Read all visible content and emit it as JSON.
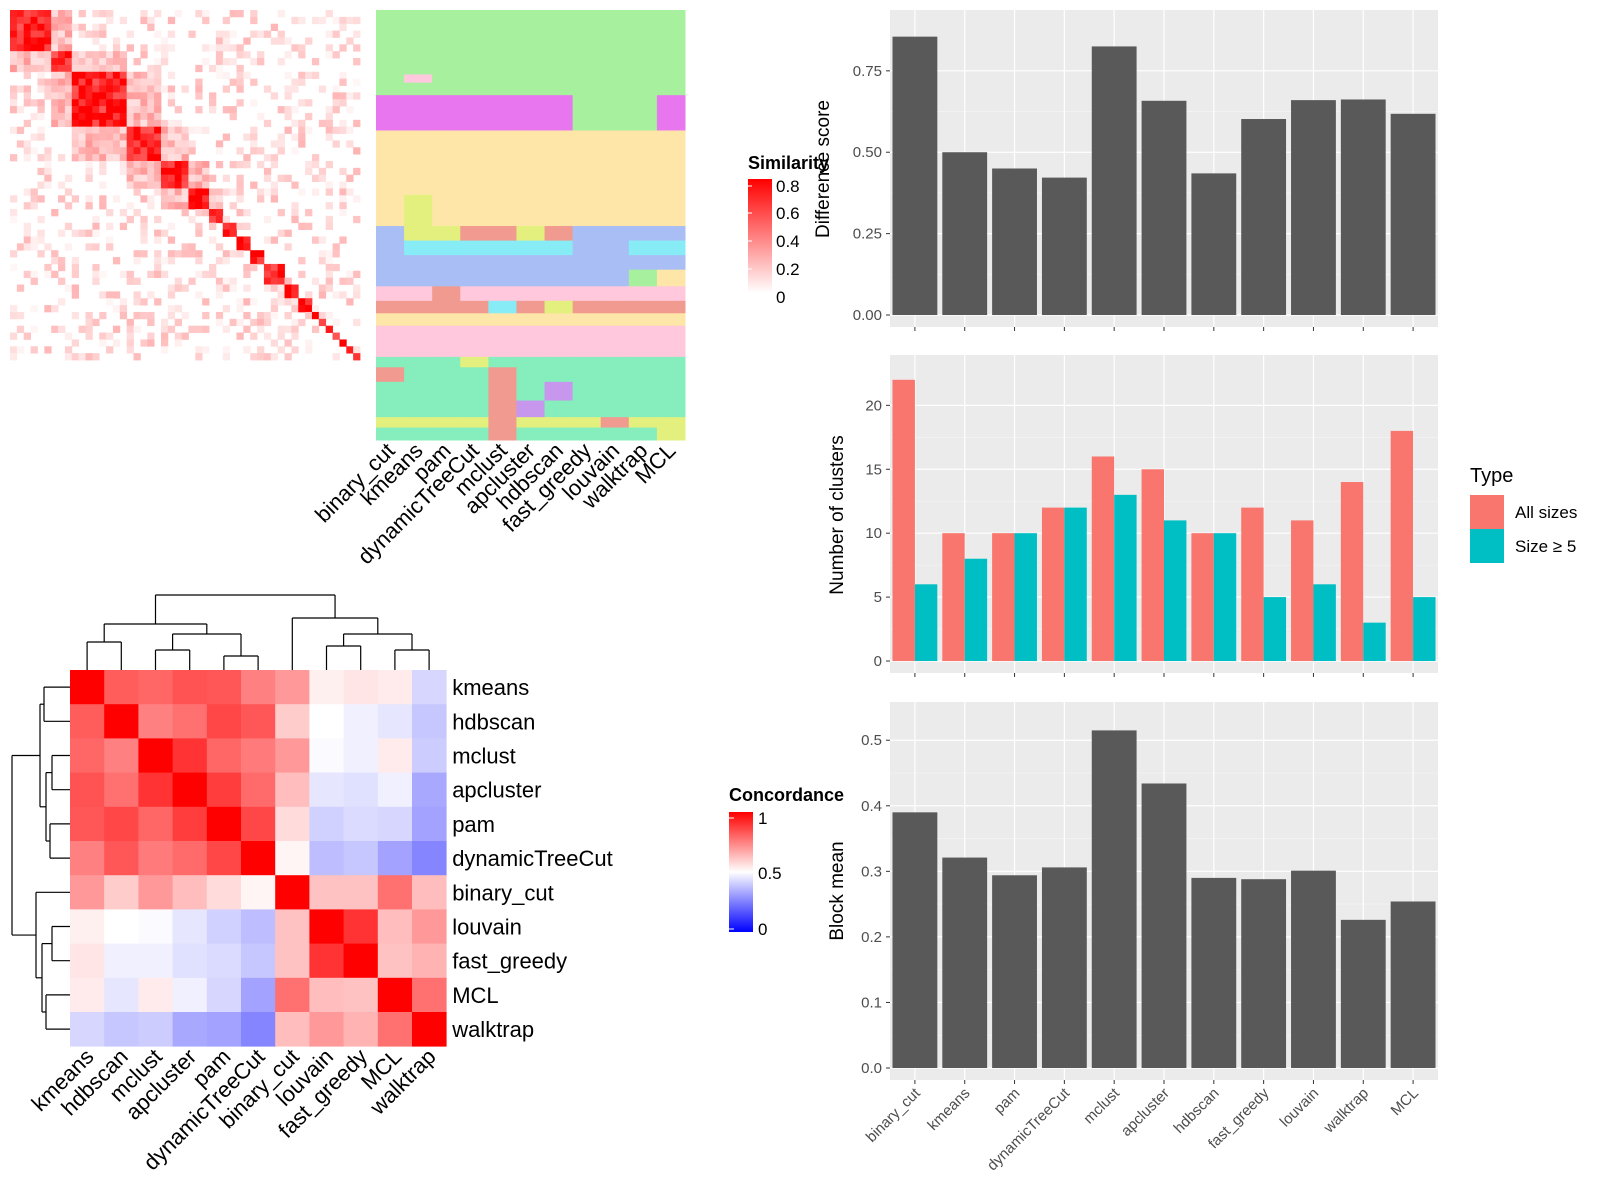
{
  "chart_data": [
    {
      "id": "similarity_heatmap",
      "type": "heatmap",
      "legend": {
        "title": "Similarity",
        "ticks": [
          "0.8",
          "0.6",
          "0.4",
          "0.2",
          "0"
        ],
        "colors": [
          "#ffffff",
          "#ff0000"
        ]
      },
      "column_labels": [
        "binary_cut",
        "kmeans",
        "pam",
        "dynamicTreeCut",
        "mclust",
        "apcluster",
        "hdbscan",
        "fast_greedy",
        "louvain",
        "walktrap",
        "MCL"
      ],
      "block_sizes_rows": [
        6,
        3,
        8,
        5,
        4,
        3,
        2,
        2,
        2,
        2,
        3,
        2,
        2,
        1,
        1,
        1,
        1,
        1,
        1,
        1
      ],
      "membership_colors": [
        "#a6f09e",
        "#e876ee",
        "#fde6a7",
        "#a8bef4",
        "#87ecf6",
        "#ffc8dc",
        "#86eebc",
        "#f19a90",
        "#e3f07e",
        "#c797ee"
      ]
    },
    {
      "id": "concordance_heatmap",
      "type": "heatmap",
      "legend": {
        "title": "Concordance",
        "ticks": [
          "1",
          "0.5",
          "0"
        ],
        "colors": [
          "#0000ff",
          "#ffffff",
          "#ff0000"
        ]
      },
      "labels": [
        "kmeans",
        "hdbscan",
        "mclust",
        "apcluster",
        "pam",
        "dynamicTreeCut",
        "binary_cut",
        "louvain",
        "fast_greedy",
        "MCL",
        "walktrap"
      ],
      "matrix": [
        [
          1.0,
          0.82,
          0.8,
          0.84,
          0.83,
          0.75,
          0.7,
          0.53,
          0.55,
          0.54,
          0.42
        ],
        [
          0.82,
          1.0,
          0.75,
          0.78,
          0.86,
          0.83,
          0.6,
          0.5,
          0.47,
          0.45,
          0.39
        ],
        [
          0.8,
          0.75,
          1.0,
          0.9,
          0.8,
          0.76,
          0.7,
          0.49,
          0.47,
          0.54,
          0.4
        ],
        [
          0.84,
          0.78,
          0.9,
          1.0,
          0.88,
          0.79,
          0.63,
          0.45,
          0.44,
          0.47,
          0.33
        ],
        [
          0.83,
          0.86,
          0.8,
          0.88,
          1.0,
          0.86,
          0.57,
          0.41,
          0.43,
          0.42,
          0.32
        ],
        [
          0.75,
          0.83,
          0.76,
          0.79,
          0.86,
          1.0,
          0.52,
          0.37,
          0.39,
          0.32,
          0.26
        ],
        [
          0.7,
          0.6,
          0.7,
          0.63,
          0.57,
          0.52,
          1.0,
          0.62,
          0.62,
          0.78,
          0.63
        ],
        [
          0.53,
          0.5,
          0.49,
          0.45,
          0.41,
          0.37,
          0.62,
          1.0,
          0.9,
          0.63,
          0.7
        ],
        [
          0.55,
          0.47,
          0.47,
          0.44,
          0.43,
          0.39,
          0.62,
          0.9,
          1.0,
          0.62,
          0.65
        ],
        [
          0.54,
          0.45,
          0.54,
          0.47,
          0.42,
          0.32,
          0.78,
          0.63,
          0.62,
          1.0,
          0.78
        ],
        [
          0.42,
          0.39,
          0.4,
          0.33,
          0.32,
          0.26,
          0.63,
          0.7,
          0.65,
          0.78,
          1.0
        ]
      ]
    },
    {
      "id": "difference_score",
      "type": "bar",
      "categories": [
        "binary_cut",
        "kmeans",
        "pam",
        "dynamicTreeCut",
        "mclust",
        "apcluster",
        "hdbscan",
        "fast_greedy",
        "louvain",
        "walktrap",
        "MCL"
      ],
      "values": [
        0.855,
        0.5,
        0.45,
        0.422,
        0.825,
        0.658,
        0.435,
        0.602,
        0.66,
        0.662,
        0.618
      ],
      "ylabel": "Difference score",
      "yticks": [
        "0.00",
        "0.25",
        "0.50",
        "0.75"
      ],
      "ylim": [
        0,
        0.9
      ],
      "bar_color": "#595959"
    },
    {
      "id": "number_of_clusters",
      "type": "bar",
      "categories": [
        "binary_cut",
        "kmeans",
        "pam",
        "dynamicTreeCut",
        "mclust",
        "apcluster",
        "hdbscan",
        "fast_greedy",
        "louvain",
        "walktrap",
        "MCL"
      ],
      "series": [
        {
          "name": "All sizes",
          "color": "#f8766d",
          "values": [
            22,
            10,
            10,
            12,
            16,
            15,
            10,
            12,
            11,
            14,
            18
          ]
        },
        {
          "name": "Size ≥ 5",
          "color": "#00bfc4",
          "values": [
            6,
            8,
            10,
            12,
            13,
            11,
            10,
            5,
            6,
            3,
            5
          ]
        }
      ],
      "ylabel": "Number of clusters",
      "yticks": [
        "0",
        "5",
        "10",
        "15",
        "20"
      ],
      "ylim": [
        0,
        23
      ],
      "legend": {
        "title": "Type",
        "placement": "right"
      }
    },
    {
      "id": "block_mean",
      "type": "bar",
      "categories": [
        "binary_cut",
        "kmeans",
        "pam",
        "dynamicTreeCut",
        "mclust",
        "apcluster",
        "hdbscan",
        "fast_greedy",
        "louvain",
        "walktrap",
        "MCL"
      ],
      "values": [
        0.39,
        0.321,
        0.294,
        0.306,
        0.515,
        0.434,
        0.29,
        0.288,
        0.301,
        0.226,
        0.254
      ],
      "ylabel": "Block mean",
      "yticks": [
        "0.0",
        "0.1",
        "0.2",
        "0.3",
        "0.4",
        "0.5"
      ],
      "ylim": [
        0,
        0.54
      ],
      "bar_color": "#595959"
    }
  ]
}
